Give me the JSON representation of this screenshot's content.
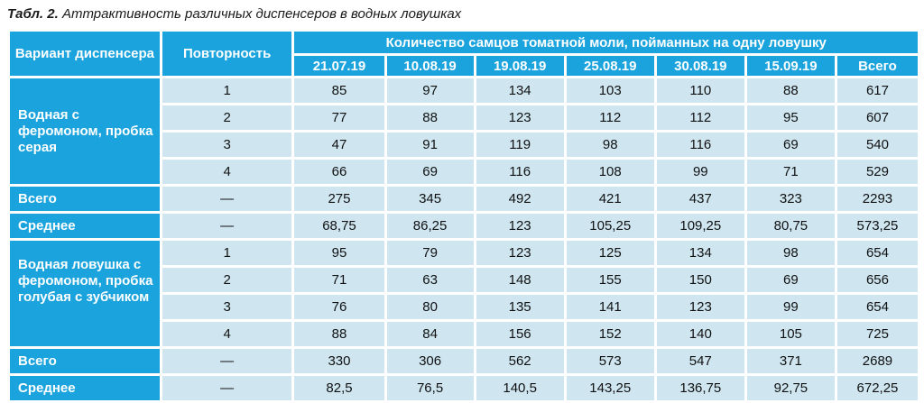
{
  "caption": {
    "prefix": "Табл. 2.",
    "title": "Аттрактивность различных диспенсеров в водных ловушках"
  },
  "headers": {
    "variant": "Вариант диспенсера",
    "repeat": "Повторность",
    "group": "Количество самцов томатной моли, пойманных на одну ловушку",
    "dates": [
      "21.07.19",
      "10.08.19",
      "19.08.19",
      "25.08.19",
      "30.08.19",
      "15.09.19",
      "Всего"
    ]
  },
  "groups": [
    {
      "label": "Водная с феромоном, пробка серая",
      "rows": [
        {
          "rep": "1",
          "vals": [
            "85",
            "97",
            "134",
            "103",
            "110",
            "88",
            "617"
          ]
        },
        {
          "rep": "2",
          "vals": [
            "77",
            "88",
            "123",
            "112",
            "112",
            "95",
            "607"
          ]
        },
        {
          "rep": "3",
          "vals": [
            "47",
            "91",
            "119",
            "98",
            "116",
            "69",
            "540"
          ]
        },
        {
          "rep": "4",
          "vals": [
            "66",
            "69",
            "116",
            "108",
            "99",
            "71",
            "529"
          ]
        }
      ],
      "total": {
        "label": "Всего",
        "rep": "—",
        "vals": [
          "275",
          "345",
          "492",
          "421",
          "437",
          "323",
          "2293"
        ]
      },
      "mean": {
        "label": "Среднее",
        "rep": "—",
        "vals": [
          "68,75",
          "86,25",
          "123",
          "105,25",
          "109,25",
          "80,75",
          "573,25"
        ]
      }
    },
    {
      "label": "Водная ловушка с феромоном, пробка голубая с зубчиком",
      "rows": [
        {
          "rep": "1",
          "vals": [
            "95",
            "79",
            "123",
            "125",
            "134",
            "98",
            "654"
          ]
        },
        {
          "rep": "2",
          "vals": [
            "71",
            "63",
            "148",
            "155",
            "150",
            "69",
            "656"
          ]
        },
        {
          "rep": "3",
          "vals": [
            "76",
            "80",
            "135",
            "141",
            "123",
            "99",
            "654"
          ]
        },
        {
          "rep": "4",
          "vals": [
            "88",
            "84",
            "156",
            "152",
            "140",
            "105",
            "725"
          ]
        }
      ],
      "total": {
        "label": "Всего",
        "rep": "—",
        "vals": [
          "330",
          "306",
          "562",
          "573",
          "547",
          "371",
          "2689"
        ]
      },
      "mean": {
        "label": "Среднее",
        "rep": "—",
        "vals": [
          "82,5",
          "76,5",
          "140,5",
          "143,25",
          "136,75",
          "92,75",
          "672,25"
        ]
      }
    }
  ]
}
